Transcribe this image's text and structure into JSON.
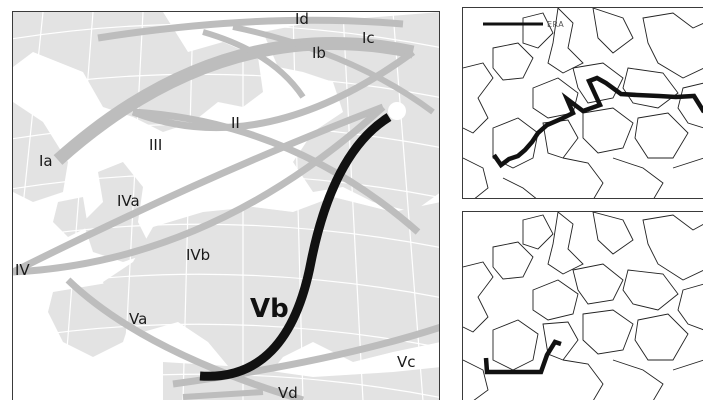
{
  "main_map": {
    "colors": {
      "background": "#ffffff",
      "land": "#e3e3e3",
      "graticule": "#ffffff",
      "track_gray": "#bdbdbd",
      "track_highlight": "#111111"
    },
    "tracks": [
      {
        "id": "Ia",
        "label": "Ia",
        "highlighted": false
      },
      {
        "id": "Id",
        "label": "Id",
        "highlighted": false
      },
      {
        "id": "Ib",
        "label": "Ib",
        "highlighted": false
      },
      {
        "id": "Ic",
        "label": "Ic",
        "highlighted": false
      },
      {
        "id": "II",
        "label": "II",
        "highlighted": false
      },
      {
        "id": "III",
        "label": "III",
        "highlighted": false
      },
      {
        "id": "IVa",
        "label": "IVa",
        "highlighted": false
      },
      {
        "id": "IVb",
        "label": "IVb",
        "highlighted": false
      },
      {
        "id": "IV",
        "label": "IV",
        "highlighted": false
      },
      {
        "id": "Va",
        "label": "Va",
        "highlighted": false
      },
      {
        "id": "Vb",
        "label": "Vb",
        "highlighted": true
      },
      {
        "id": "Vc",
        "label": "Vc",
        "highlighted": false
      },
      {
        "id": "Vd",
        "label": "Vd",
        "highlighted": false
      }
    ]
  },
  "insets": {
    "legend_label": "ERA",
    "colors": {
      "track": "#111111",
      "borders": "#222222",
      "background": "#ffffff"
    }
  }
}
